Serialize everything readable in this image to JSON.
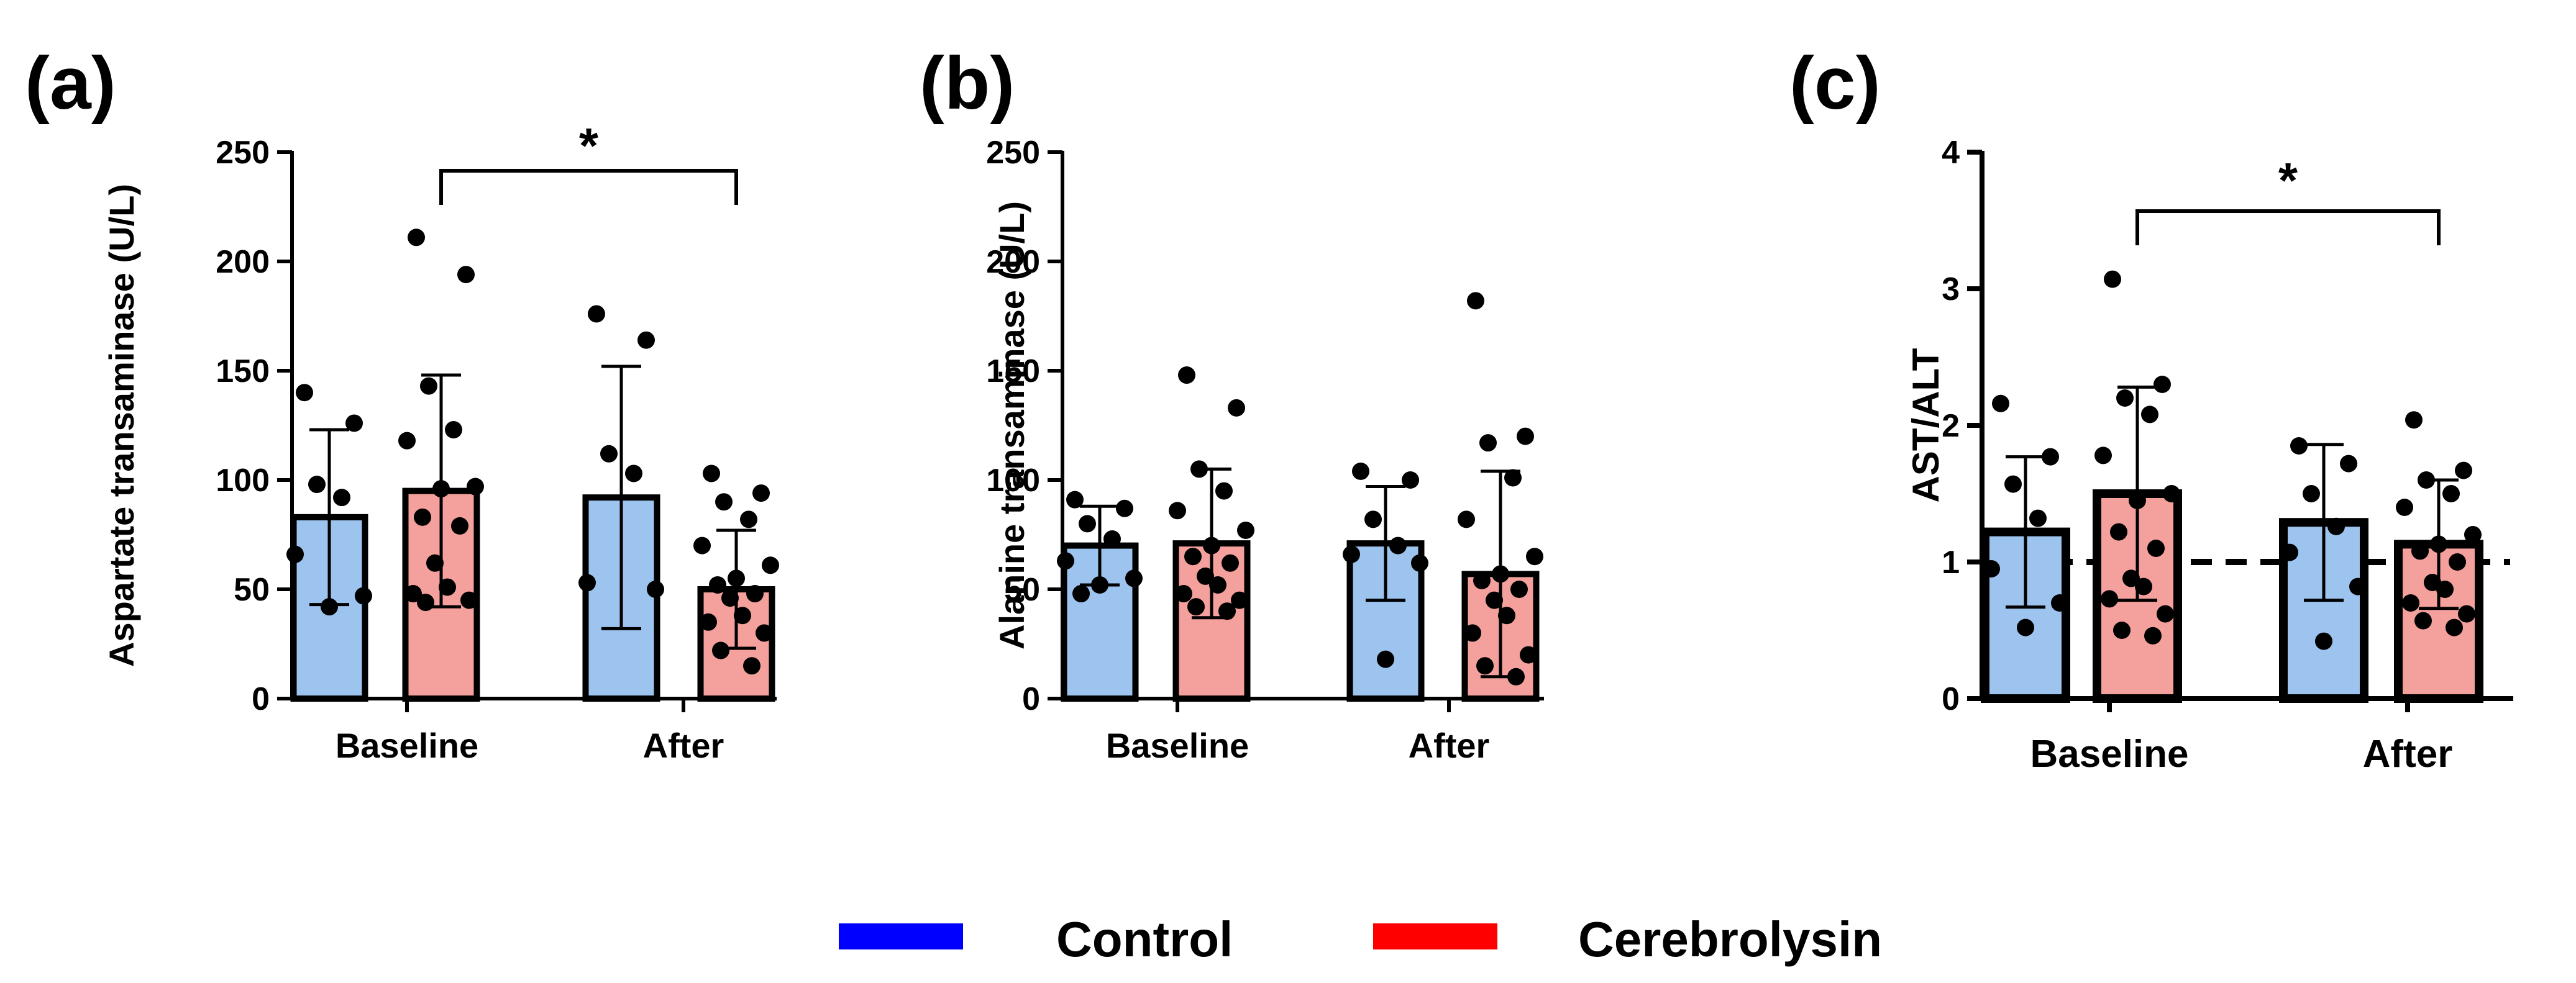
{
  "colors": {
    "control_fill": "#9dc3ef",
    "cerebrolysin_fill": "#f4a09c",
    "control_legend": "#0000ff",
    "cerebrolysin_legend": "#ff0000",
    "ink": "#000000"
  },
  "legend": [
    {
      "label": "Control",
      "color": "#0000ff"
    },
    {
      "label": "Cerebrolysin",
      "color": "#ff0000"
    }
  ],
  "chart_data": [
    {
      "panel": "(a)",
      "type": "bar",
      "ylabel": "Aspartate transaminase (U/L)",
      "ylim": [
        0,
        250
      ],
      "yticks": [
        "0",
        "50",
        "100",
        "150",
        "200",
        "250"
      ],
      "categories": [
        "Baseline",
        "After"
      ],
      "series": [
        {
          "name": "Control",
          "values": [
            83,
            92
          ],
          "sd": [
            40,
            60
          ],
          "points": [
            [
              140,
              126,
              98,
              92,
              66,
              47,
              42
            ],
            [
              176,
              164,
              112,
              103,
              53,
              50
            ]
          ]
        },
        {
          "name": "Cerebrolysin",
          "values": [
            95,
            50
          ],
          "sd": [
            53,
            27
          ],
          "points": [
            [
              211,
              194,
              143,
              123,
              118,
              97,
              96,
              83,
              79,
              62,
              51,
              48,
              45,
              44
            ],
            [
              103,
              94,
              90,
              82,
              70,
              61,
              55,
              52,
              48,
              46,
              38,
              35,
              30,
              22,
              15
            ]
          ]
        }
      ],
      "significance": {
        "label": "*",
        "from": "Baseline Cerebrolysin",
        "to": "After Cerebrolysin"
      }
    },
    {
      "panel": "(b)",
      "type": "bar",
      "ylabel": "Alanine transaminase (U/L)",
      "ylim": [
        0,
        250
      ],
      "yticks": [
        "0",
        "50",
        "100",
        "150",
        "200",
        "250"
      ],
      "categories": [
        "Baseline",
        "After"
      ],
      "series": [
        {
          "name": "Control",
          "values": [
            70,
            71
          ],
          "sd": [
            18,
            26
          ],
          "points": [
            [
              91,
              87,
              80,
              73,
              63,
              55,
              52,
              48
            ],
            [
              104,
              100,
              82,
              70,
              66,
              62,
              18
            ]
          ]
        },
        {
          "name": "Cerebrolysin",
          "values": [
            71,
            57
          ],
          "sd": [
            34,
            47
          ],
          "points": [
            [
              148,
              133,
              105,
              95,
              86,
              77,
              70,
              65,
              62,
              56,
              52,
              48,
              45,
              42,
              40
            ],
            [
              182,
              120,
              117,
              101,
              82,
              65,
              57,
              54,
              50,
              45,
              38,
              30,
              20,
              15,
              10
            ]
          ]
        }
      ]
    },
    {
      "panel": "(c)",
      "type": "bar",
      "ylabel": "AST/ALT",
      "ylim": [
        0,
        4
      ],
      "yticks": [
        "0",
        "1",
        "2",
        "3",
        "4"
      ],
      "categories": [
        "Baseline",
        "After"
      ],
      "reference_line": 1,
      "series": [
        {
          "name": "Control",
          "values": [
            1.22,
            1.29
          ],
          "sd": [
            0.55,
            0.57
          ],
          "points": [
            [
              2.16,
              1.77,
              1.57,
              1.32,
              0.95,
              0.7,
              0.52
            ],
            [
              1.85,
              1.72,
              1.5,
              1.26,
              1.07,
              0.82,
              0.42
            ]
          ]
        },
        {
          "name": "Cerebrolysin",
          "values": [
            1.5,
            1.13
          ],
          "sd": [
            0.78,
            0.47
          ],
          "points": [
            [
              3.07,
              2.3,
              2.2,
              2.08,
              1.78,
              1.5,
              1.45,
              1.22,
              1.1,
              0.88,
              0.82,
              0.73,
              0.62,
              0.5,
              0.46
            ],
            [
              2.04,
              1.67,
              1.6,
              1.5,
              1.4,
              1.2,
              1.13,
              1.08,
              1.0,
              0.85,
              0.8,
              0.7,
              0.62,
              0.57,
              0.52
            ]
          ]
        }
      ],
      "significance": {
        "label": "*",
        "from": "Baseline Cerebrolysin",
        "to": "After Cerebrolysin"
      }
    }
  ]
}
